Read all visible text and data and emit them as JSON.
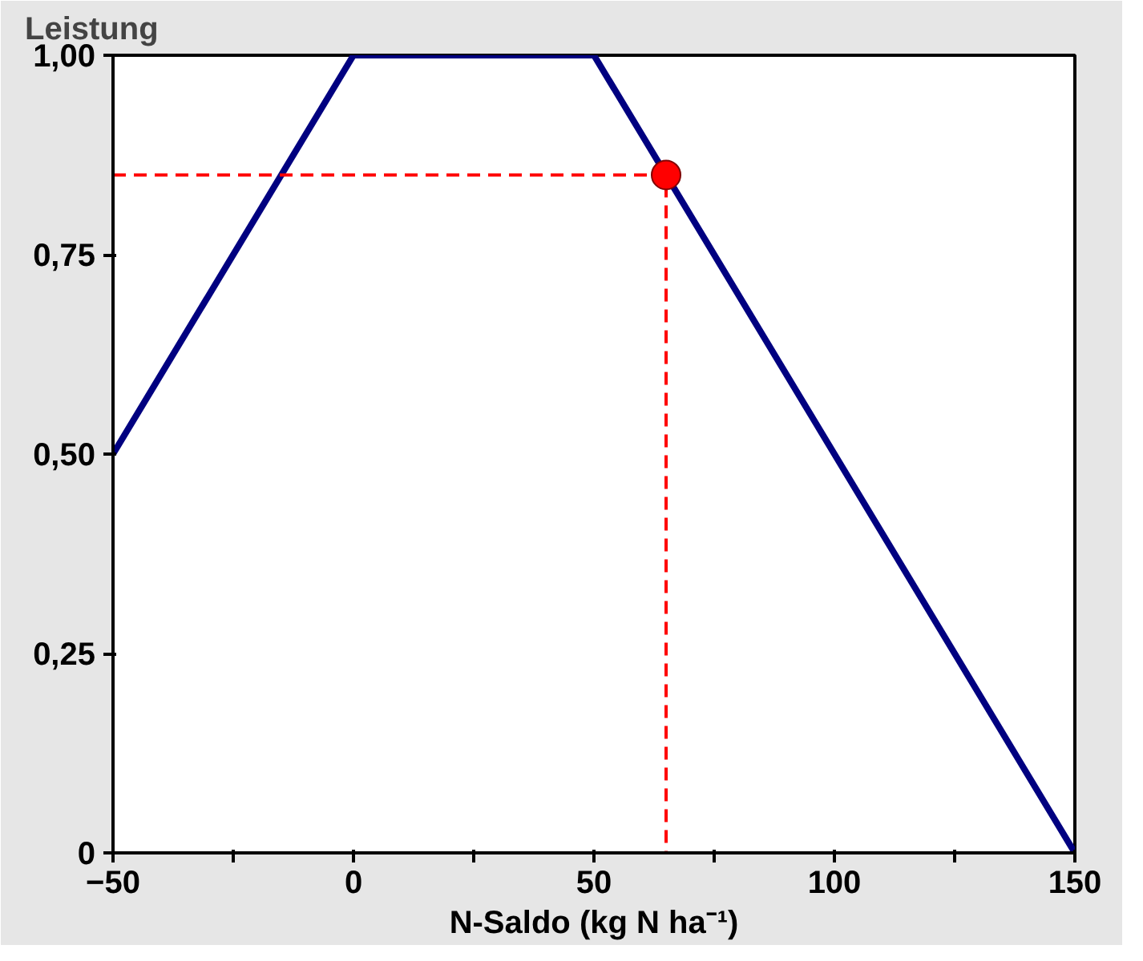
{
  "chart_data": {
    "type": "line",
    "ylabel": "Leistung",
    "xlabel": "N-Saldo (kg N ha⁻¹)",
    "xlim": [
      -50,
      150
    ],
    "ylim": [
      0,
      1
    ],
    "xticks": [
      -50,
      {
        "value": -25,
        "label": null
      },
      0,
      {
        "value": 25,
        "label": null
      },
      50,
      {
        "value": 75,
        "label": null
      },
      100,
      {
        "value": 125,
        "label": null
      },
      150
    ],
    "yticks": [
      0,
      {
        "value": 0.25,
        "label": "0,25"
      },
      {
        "value": 0.5,
        "label": "0,50"
      },
      {
        "value": 0.75,
        "label": "0,75"
      },
      {
        "value": 1,
        "label": "1,00"
      }
    ],
    "grid": false,
    "series": [
      {
        "color": "#000080",
        "x": [
          -50,
          0,
          50,
          150
        ],
        "values": [
          0.5,
          1,
          1,
          0
        ]
      },
      {
        "type": "line",
        "line_style": "dashed",
        "color": "#ff0000",
        "x": [
          -50,
          65,
          65
        ],
        "values": [
          0.85,
          0.85,
          0
        ]
      },
      {
        "type": "scatter",
        "marker": "circle",
        "color": "#ff0000",
        "x": [
          65
        ],
        "values": [
          0.85
        ]
      }
    ]
  }
}
